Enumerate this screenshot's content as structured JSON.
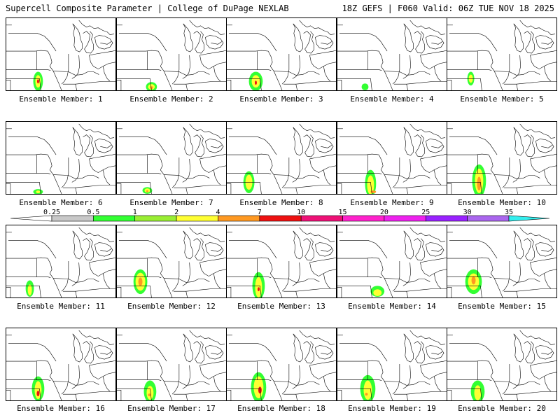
{
  "header": {
    "title_left": "Supercell Composite Parameter | College of DuPage NEXLAB",
    "title_right": "18Z GEFS | F060 Valid: 06Z TUE NOV 18 2025"
  },
  "legend": {
    "bins": [
      {
        "label": "0.25",
        "color": "#c8c8c8"
      },
      {
        "label": "0.5",
        "color": "#33ff33"
      },
      {
        "label": "1",
        "color": "#99ee33"
      },
      {
        "label": "2",
        "color": "#ffff33"
      },
      {
        "label": "4",
        "color": "#ff9922"
      },
      {
        "label": "7",
        "color": "#ee1111"
      },
      {
        "label": "10",
        "color": "#ee1177"
      },
      {
        "label": "15",
        "color": "#ff22cc"
      },
      {
        "label": "20",
        "color": "#ee22ee"
      },
      {
        "label": "25",
        "color": "#9922ff"
      },
      {
        "label": "30",
        "color": "#aa66ee"
      },
      {
        "label": "35",
        "color": "#33eeee"
      }
    ]
  },
  "members": [
    {
      "label": "Ensemble Member: 1",
      "max": "7"
    },
    {
      "label": "Ensemble Member: 2",
      "max": "4"
    },
    {
      "label": "Ensemble Member: 3",
      "max": "7"
    },
    {
      "label": "Ensemble Member: 4",
      "max": "1"
    },
    {
      "label": "Ensemble Member: 5",
      "max": "2"
    },
    {
      "label": "Ensemble Member: 6",
      "max": "1"
    },
    {
      "label": "Ensemble Member: 7",
      "max": "4"
    },
    {
      "label": "Ensemble Member: 8",
      "max": "2"
    },
    {
      "label": "Ensemble Member: 9",
      "max": "4"
    },
    {
      "label": "Ensemble Member: 10",
      "max": "7"
    },
    {
      "label": "Ensemble Member: 11",
      "max": "2"
    },
    {
      "label": "Ensemble Member: 12",
      "max": "7"
    },
    {
      "label": "Ensemble Member: 13",
      "max": "7"
    },
    {
      "label": "Ensemble Member: 14",
      "max": "2"
    },
    {
      "label": "Ensemble Member: 15",
      "max": "7"
    },
    {
      "label": "Ensemble Member: 16",
      "max": "7"
    },
    {
      "label": "Ensemble Member: 17",
      "max": "4"
    },
    {
      "label": "Ensemble Member: 18",
      "max": "7"
    },
    {
      "label": "Ensemble Member: 19",
      "max": "4"
    },
    {
      "label": "Ensemble Member: 20",
      "max": "2"
    }
  ]
}
